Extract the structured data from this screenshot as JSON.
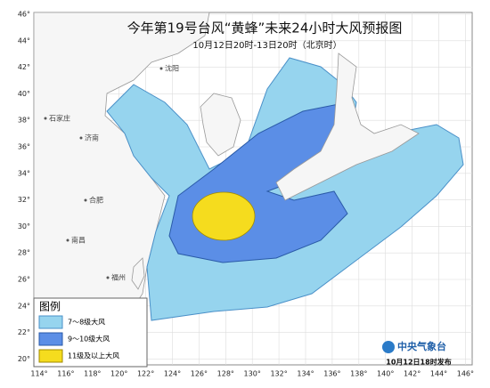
{
  "header": {
    "title": "今年第19号台风“黄蜂”未来24小时大风预报图",
    "subtitle": "10月12日20时-13日20时（北京时）"
  },
  "lat_labels": [
    "46°",
    "44°",
    "42°",
    "40°",
    "38°",
    "36°",
    "34°",
    "32°",
    "30°",
    "28°",
    "26°",
    "24°",
    "22°",
    "20°"
  ],
  "lon_labels": [
    "114°",
    "116°",
    "118°",
    "120°",
    "122°",
    "124°",
    "126°",
    "128°",
    "130°",
    "132°",
    "134°",
    "136°",
    "138°",
    "140°",
    "142°",
    "144°",
    "146°"
  ],
  "cities": [
    "沈阳",
    "石家庄",
    "济南",
    "合肥",
    "南昌",
    "福州"
  ],
  "legend": {
    "title": "图例",
    "items": [
      "7～8级大风",
      "9～10级大风",
      "11级及以上大风"
    ]
  },
  "footer": {
    "agency": "中央气象台",
    "issued": "10月12日18时发布"
  }
}
